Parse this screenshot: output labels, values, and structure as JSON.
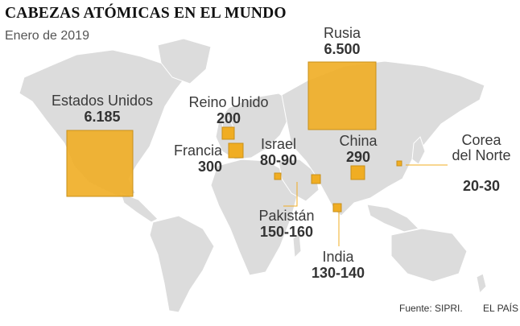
{
  "title": "CABEZAS ATÓMICAS EN EL MUNDO",
  "subtitle": "Enero de 2019",
  "countries": [
    {
      "key": "usa",
      "name": "Estados Unidos",
      "value": "6.185",
      "warheads": 6185
    },
    {
      "key": "russia",
      "name": "Rusia",
      "value": "6.500",
      "warheads": 6500
    },
    {
      "key": "uk",
      "name": "Reino Unido",
      "value": "200",
      "warheads": 200
    },
    {
      "key": "france",
      "name": "Francia",
      "value": "300",
      "warheads": 300
    },
    {
      "key": "israel",
      "name": "Israel",
      "value": "80-90",
      "warheads": 85
    },
    {
      "key": "china",
      "name": "China",
      "value": "290",
      "warheads": 290
    },
    {
      "key": "northkorea",
      "name": "Corea\ndel Norte",
      "value": "20-30",
      "warheads": 25
    },
    {
      "key": "pakistan",
      "name": "Pakistán",
      "value": "150-160",
      "warheads": 155
    },
    {
      "key": "india",
      "name": "India",
      "value": "130-140",
      "warheads": 135
    }
  ],
  "source": "Fuente: SIPRI.",
  "credit": "EL PAÍS",
  "colors": {
    "land": "#dcdcdc",
    "square": "#f0ad23",
    "square_stroke": "#c8901a",
    "leader": "#f0ad23"
  }
}
